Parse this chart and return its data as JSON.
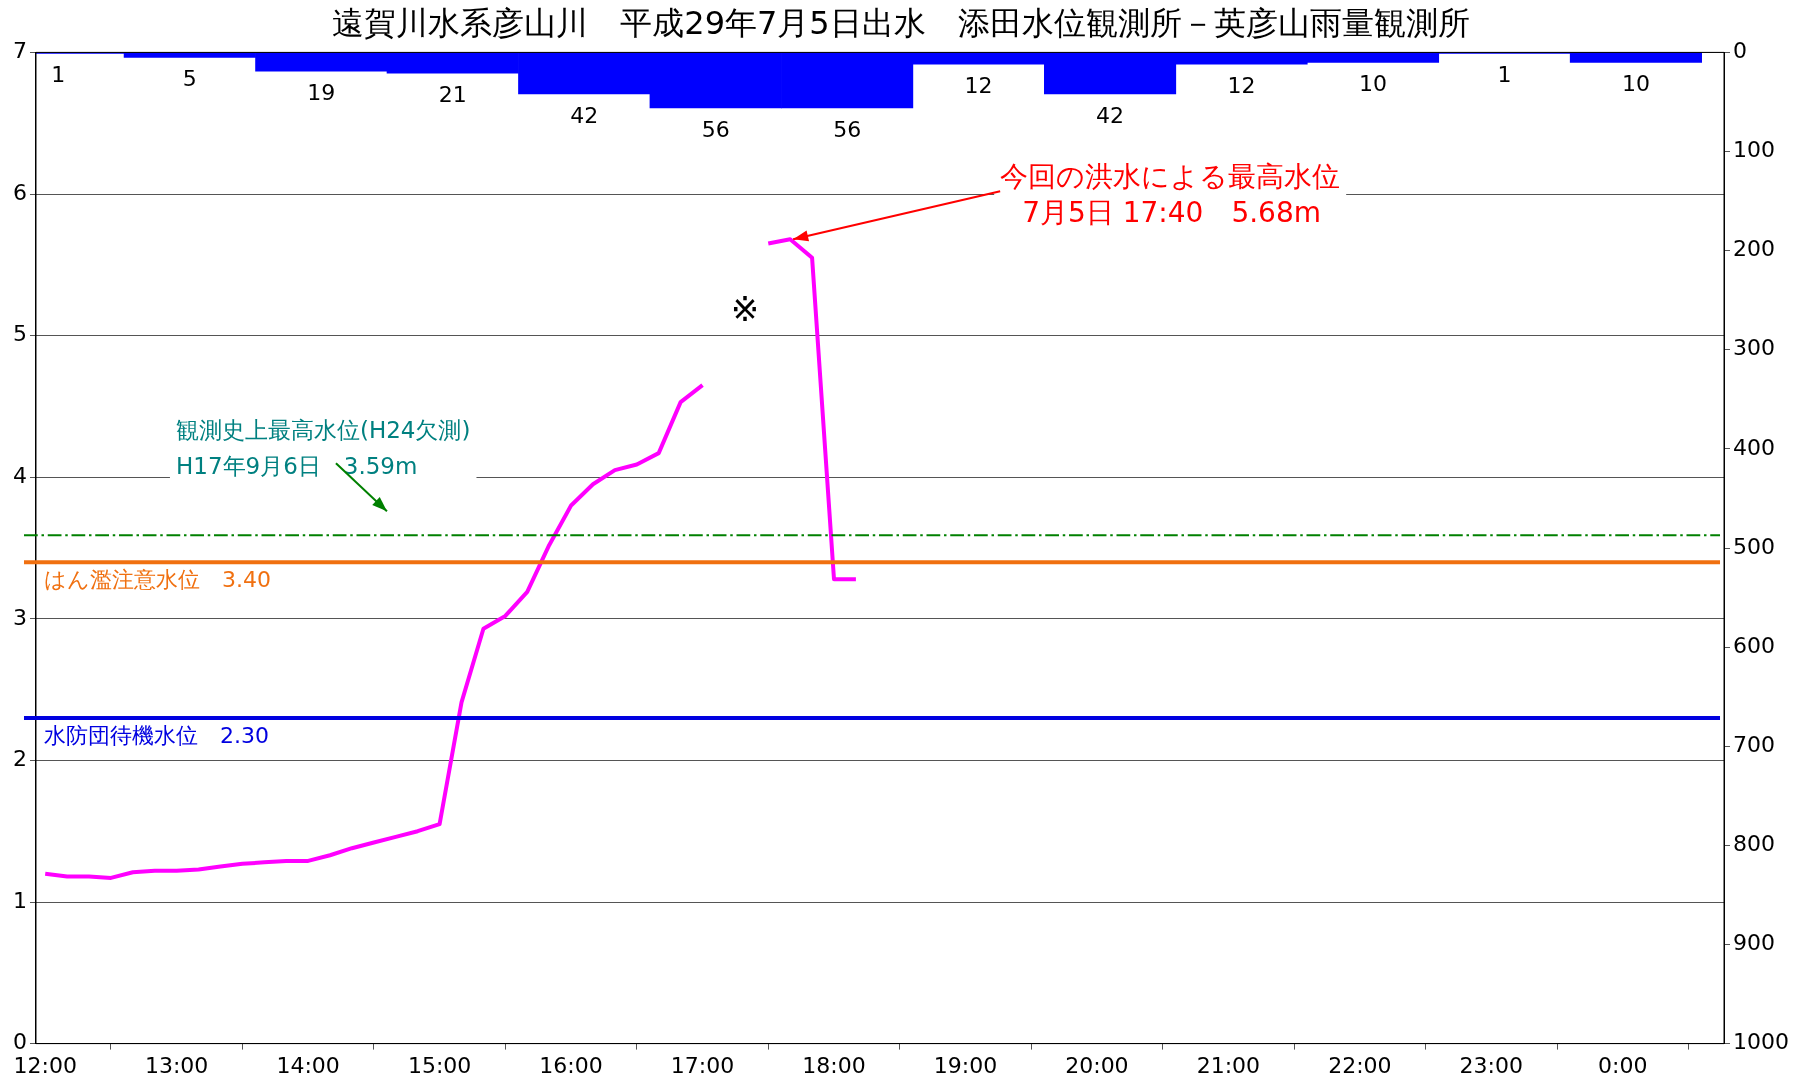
{
  "chart_data": {
    "type": "line",
    "title": "遠賀川水系彦山川　平成29年7月5日出水　添田水位観測所－英彦山雨量観測所",
    "xlim": [
      11.93,
      24.77
    ],
    "xticks": [
      {
        "value": 12,
        "label": "12:00"
      },
      {
        "value": 13,
        "label": "13:00"
      },
      {
        "value": 14,
        "label": "14:00"
      },
      {
        "value": 15,
        "label": "15:00"
      },
      {
        "value": 16,
        "label": "16:00"
      },
      {
        "value": 17,
        "label": "17:00"
      },
      {
        "value": 18,
        "label": "18:00"
      },
      {
        "value": 19,
        "label": "19:00"
      },
      {
        "value": 20,
        "label": "20:00"
      },
      {
        "value": 21,
        "label": "21:00"
      },
      {
        "value": 22,
        "label": "22:00"
      },
      {
        "value": 23,
        "label": "23:00"
      },
      {
        "value": 24,
        "label": "0:00"
      }
    ],
    "ylim": [
      0,
      7
    ],
    "yticks": [
      0,
      1,
      2,
      3,
      4,
      5,
      6,
      7
    ],
    "y2lim": [
      1000,
      0
    ],
    "y2ticks": [
      0,
      100,
      200,
      300,
      400,
      500,
      600,
      700,
      800,
      900,
      1000
    ],
    "grid": "y",
    "marker": "none",
    "line_style": "solid",
    "series": [
      {
        "type": "bar",
        "axis": "y2",
        "color": "#0000ff",
        "x": [
          12.1,
          13.1,
          14.1,
          15.1,
          16.1,
          17.1,
          18.1,
          19.1,
          20.1,
          21.1,
          22.1,
          23.1,
          24.1
        ],
        "values": [
          1,
          5,
          19,
          21,
          42,
          56,
          56,
          12,
          42,
          12,
          10,
          1,
          10
        ],
        "value_labels": [
          "1",
          "5",
          "19",
          "21",
          "42",
          "56",
          "56",
          "12",
          "42",
          "12",
          "10",
          "1",
          "10"
        ]
      },
      {
        "color": "#ff00ff",
        "x": [
          12,
          12.1667,
          12.3333,
          12.5,
          12.6667,
          12.8333,
          13,
          13.1667,
          13.3333,
          13.5,
          13.6667,
          13.8333,
          14,
          14.1667,
          14.3333,
          14.5,
          14.6667,
          14.8333,
          15,
          15.1667,
          15.3333,
          15.5,
          15.6667,
          15.8333,
          16,
          16.1667,
          16.3333,
          16.5,
          16.6667,
          16.8333,
          17,
          17.1667,
          17.3333,
          17.5,
          17.6667,
          17.8333,
          18,
          18.1667
        ],
        "values": [
          1.2,
          1.18,
          1.18,
          1.17,
          1.21,
          1.22,
          1.22,
          1.23,
          1.25,
          1.27,
          1.28,
          1.29,
          1.29,
          1.33,
          1.38,
          1.42,
          1.46,
          1.5,
          1.55,
          2.41,
          2.93,
          3.02,
          3.19,
          3.52,
          3.8,
          3.95,
          4.05,
          4.09,
          4.17,
          4.53,
          4.65,
          null,
          null,
          5.65,
          5.68,
          5.55,
          3.28,
          3.28
        ]
      }
    ],
    "ref_lines": [
      {
        "axis": "y",
        "value": 3.59,
        "color": "#008000",
        "line_style": "dashed"
      },
      {
        "axis": "y",
        "value": 3.4,
        "label": "はん濫注意水位　3.40",
        "color": "#f07010"
      },
      {
        "axis": "y",
        "value": 2.3,
        "label": "水防団待機水位　2.30",
        "color": "#0000e0"
      }
    ],
    "annotations": [
      {
        "text": "今回の洪水による最高水位\n7月5日 17:40　5.68m",
        "x": 17.6667,
        "y": 5.68
      },
      {
        "text": "観測史上最高水位(H24欠測)\nH17年9月6日　3.59m",
        "x": 14.63,
        "y": 3.59
      },
      "※"
    ]
  }
}
